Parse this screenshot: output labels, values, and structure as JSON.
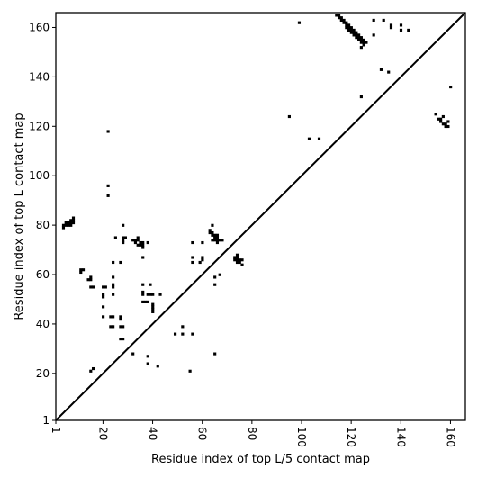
{
  "chart_data": {
    "type": "scatter",
    "xlabel": "Residue index of top L/5 contact map",
    "ylabel": "Residue index of top L contact map",
    "xlim": [
      1,
      166
    ],
    "ylim": [
      1,
      166
    ],
    "xticks": [
      1,
      20,
      40,
      60,
      80,
      100,
      120,
      140,
      160
    ],
    "yticks": [
      1,
      20,
      40,
      60,
      80,
      100,
      120,
      140,
      160
    ],
    "x_tick_rotation": "vertical",
    "grid": false,
    "diagonal": {
      "from": [
        1,
        1
      ],
      "to": [
        166,
        166
      ],
      "color": "#000000"
    },
    "marker": {
      "shape": "square",
      "color": "#000000"
    },
    "series": [
      {
        "points": [
          [
            4,
            79
          ],
          [
            4,
            80
          ],
          [
            5,
            80
          ],
          [
            5,
            81
          ],
          [
            6,
            80
          ],
          [
            6,
            81
          ],
          [
            7,
            80
          ],
          [
            7,
            81
          ],
          [
            7,
            82
          ],
          [
            8,
            81
          ],
          [
            8,
            82
          ],
          [
            8,
            83
          ],
          [
            11,
            61
          ],
          [
            11,
            62
          ],
          [
            12,
            62
          ],
          [
            14,
            58
          ],
          [
            15,
            58
          ],
          [
            15,
            59
          ],
          [
            15,
            55
          ],
          [
            16,
            55
          ],
          [
            15,
            21
          ],
          [
            16,
            22
          ],
          [
            20,
            55
          ],
          [
            21,
            55
          ],
          [
            20,
            51
          ],
          [
            20,
            52
          ],
          [
            20,
            47
          ],
          [
            20,
            43
          ],
          [
            22,
            92
          ],
          [
            22,
            96
          ],
          [
            22,
            118
          ],
          [
            23,
            43
          ],
          [
            24,
            43
          ],
          [
            23,
            39
          ],
          [
            24,
            39
          ],
          [
            24,
            52
          ],
          [
            24,
            55
          ],
          [
            24,
            56
          ],
          [
            24,
            59
          ],
          [
            24,
            65
          ],
          [
            25,
            75
          ],
          [
            27,
            34
          ],
          [
            28,
            34
          ],
          [
            27,
            39
          ],
          [
            28,
            39
          ],
          [
            27,
            42
          ],
          [
            27,
            43
          ],
          [
            27,
            65
          ],
          [
            28,
            73
          ],
          [
            28,
            74
          ],
          [
            28,
            75
          ],
          [
            29,
            75
          ],
          [
            28,
            80
          ],
          [
            32,
            28
          ],
          [
            32,
            74
          ],
          [
            33,
            74
          ],
          [
            34,
            74
          ],
          [
            33,
            73
          ],
          [
            34,
            72
          ],
          [
            34,
            75
          ],
          [
            35,
            72
          ],
          [
            35,
            73
          ],
          [
            36,
            71
          ],
          [
            36,
            72
          ],
          [
            36,
            73
          ],
          [
            36,
            67
          ],
          [
            36,
            56
          ],
          [
            36,
            53
          ],
          [
            36,
            52
          ],
          [
            36,
            49
          ],
          [
            37,
            49
          ],
          [
            38,
            24
          ],
          [
            38,
            27
          ],
          [
            38,
            73
          ],
          [
            39,
            56
          ],
          [
            38,
            49
          ],
          [
            38,
            52
          ],
          [
            39,
            52
          ],
          [
            40,
            45
          ],
          [
            40,
            46
          ],
          [
            40,
            47
          ],
          [
            40,
            48
          ],
          [
            40,
            52
          ],
          [
            42,
            23
          ],
          [
            43,
            52
          ],
          [
            49,
            36
          ],
          [
            52,
            36
          ],
          [
            52,
            39
          ],
          [
            55,
            21
          ],
          [
            56,
            36
          ],
          [
            56,
            65
          ],
          [
            56,
            67
          ],
          [
            56,
            73
          ],
          [
            59,
            65
          ],
          [
            60,
            66
          ],
          [
            60,
            67
          ],
          [
            60,
            73
          ],
          [
            63,
            77
          ],
          [
            63,
            78
          ],
          [
            64,
            76
          ],
          [
            64,
            77
          ],
          [
            64,
            80
          ],
          [
            64,
            74
          ],
          [
            65,
            74
          ],
          [
            65,
            75
          ],
          [
            65,
            76
          ],
          [
            66,
            73
          ],
          [
            66,
            74
          ],
          [
            66,
            75
          ],
          [
            66,
            76
          ],
          [
            67,
            74
          ],
          [
            68,
            74
          ],
          [
            65,
            28
          ],
          [
            65,
            56
          ],
          [
            65,
            59
          ],
          [
            67,
            60
          ],
          [
            73,
            66
          ],
          [
            73,
            67
          ],
          [
            74,
            65
          ],
          [
            74,
            66
          ],
          [
            74,
            67
          ],
          [
            74,
            68
          ],
          [
            75,
            65
          ],
          [
            75,
            66
          ],
          [
            76,
            64
          ],
          [
            76,
            66
          ],
          [
            95,
            124
          ],
          [
            99,
            162
          ],
          [
            103,
            115
          ],
          [
            107,
            115
          ],
          [
            114,
            165
          ],
          [
            115,
            165
          ],
          [
            115,
            164
          ],
          [
            116,
            163
          ],
          [
            116,
            164
          ],
          [
            117,
            163
          ],
          [
            117,
            162
          ],
          [
            118,
            162
          ],
          [
            118,
            161
          ],
          [
            119,
            161
          ],
          [
            119,
            160
          ],
          [
            120,
            160
          ],
          [
            120,
            159
          ],
          [
            121,
            159
          ],
          [
            121,
            158
          ],
          [
            122,
            158
          ],
          [
            122,
            157
          ],
          [
            123,
            157
          ],
          [
            123,
            156
          ],
          [
            124,
            156
          ],
          [
            124,
            155
          ],
          [
            125,
            155
          ],
          [
            125,
            154
          ],
          [
            126,
            154
          ],
          [
            118,
            160
          ],
          [
            119,
            159
          ],
          [
            120,
            158
          ],
          [
            121,
            157
          ],
          [
            122,
            156
          ],
          [
            123,
            155
          ],
          [
            124,
            154
          ],
          [
            125,
            153
          ],
          [
            124,
            152
          ],
          [
            124,
            132
          ],
          [
            129,
            157
          ],
          [
            129,
            163
          ],
          [
            132,
            143
          ],
          [
            133,
            163
          ],
          [
            135,
            142
          ],
          [
            136,
            160
          ],
          [
            136,
            161
          ],
          [
            140,
            159
          ],
          [
            140,
            161
          ],
          [
            143,
            159
          ],
          [
            154,
            125
          ],
          [
            155,
            123
          ],
          [
            156,
            122
          ],
          [
            156,
            123
          ],
          [
            157,
            121
          ],
          [
            157,
            124
          ],
          [
            158,
            120
          ],
          [
            158,
            121
          ],
          [
            159,
            120
          ],
          [
            159,
            122
          ],
          [
            160,
            136
          ]
        ]
      }
    ]
  }
}
